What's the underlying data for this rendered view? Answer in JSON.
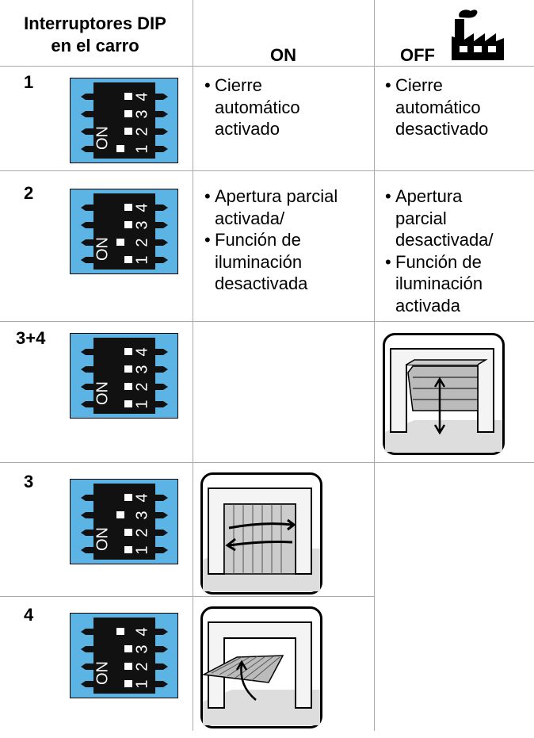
{
  "header": {
    "col1": [
      "Interruptores DIP",
      "en el carro"
    ],
    "col2": "ON",
    "col3": "OFF"
  },
  "dip": {
    "on": "ON",
    "numbers": [
      "1",
      "2",
      "3",
      "4"
    ]
  },
  "rows": [
    {
      "label": "1",
      "on": [
        [
          "Cierre",
          "automático",
          "activado"
        ]
      ],
      "off": [
        [
          "Cierre",
          "automático",
          "desactivado"
        ]
      ]
    },
    {
      "label": "2",
      "on": [
        [
          "Apertura parcial",
          "activada/"
        ],
        [
          "Función de",
          "iluminación",
          "desactivada"
        ]
      ],
      "off": [
        [
          "Apertura",
          "parcial",
          "desactivada/"
        ],
        [
          "Función de",
          "iluminación",
          "activada"
        ]
      ]
    },
    {
      "label": "3+4"
    },
    {
      "label": "3"
    },
    {
      "label": "4"
    }
  ]
}
